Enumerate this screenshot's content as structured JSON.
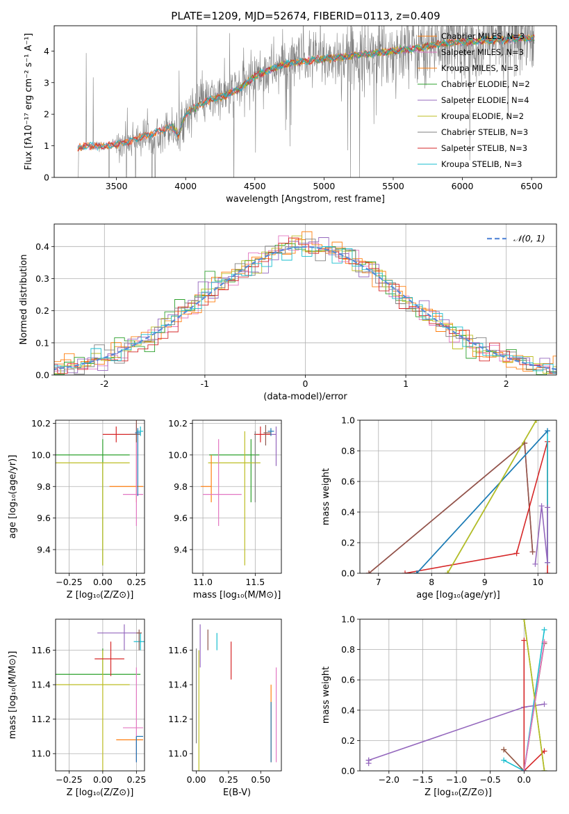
{
  "figure": {
    "title": "PLATE=1209, MJD=52674, FIBERID=0113, z=0.409"
  },
  "colors": {
    "series": [
      "#ff7f0e",
      "#2ca02c",
      "#9467bd",
      "#bcbd22",
      "#7f7f7f",
      "#d62728",
      "#17becf",
      "#e377c2",
      "#8c564b",
      "#1f77b4"
    ],
    "chabrier_miles": "#ff7f0e",
    "salpeter_miles": "#e377c2",
    "kroupa_miles": "#ff7f0e",
    "chabrier_elodie": "#2ca02c",
    "salpeter_elodie": "#9467bd",
    "kroupa_elodie": "#bcbd22",
    "chabrier_stelib": "#7f7f7f",
    "salpeter_stelib": "#d62728",
    "kroupa_stelib": "#17becf",
    "normal_curve": "#5b8bd8"
  },
  "chart_data": [
    {
      "id": "spectrum",
      "type": "line",
      "title": "PLATE=1209, MJD=52674, FIBERID=0113, z=0.409",
      "xlabel": "wavelength [Angstrom, rest frame]",
      "ylabel": "Flux [fλ10⁻¹⁷ erg cm⁻² s⁻¹ A⁻¹]",
      "xlim": [
        3050,
        6680
      ],
      "ylim": [
        0,
        4.8
      ],
      "xticks": [
        3500,
        4000,
        4500,
        5000,
        5500,
        6000,
        6500
      ],
      "yticks": [
        0,
        1,
        2,
        3,
        4
      ],
      "grid": false,
      "legend_position": "top-right",
      "legend": [
        "Chabrier MILES, N_SSP=3",
        "Salpeter MILES, N_SSP=3",
        "Kroupa MILES, N_SSP=3",
        "Chabrier ELODIE, N_SSP=2",
        "Salpeter ELODIE, N_SSP=4",
        "Kroupa ELODIE, N_SSP=2",
        "Chabrier STELIB, N_SSP=3",
        "Salpeter STELIB, N_SSP=3",
        "Kroupa STELIB, N_SSP=3"
      ],
      "model_continuum": {
        "x": [
          3210,
          3230,
          3300,
          3400,
          3500,
          3600,
          3700,
          3800,
          3900,
          3950,
          4000,
          4100,
          4200,
          4300,
          4400,
          4500,
          4600,
          4700,
          4800,
          4900,
          5000,
          5100,
          5200,
          5300,
          5400,
          5500,
          5600,
          5700,
          5800,
          5900,
          6000,
          6100,
          6200,
          6300,
          6400,
          6500
        ],
        "y": [
          0.85,
          0.95,
          1.0,
          0.98,
          1.05,
          1.15,
          1.3,
          1.45,
          1.6,
          1.35,
          2.0,
          2.3,
          2.5,
          2.6,
          2.85,
          3.2,
          3.4,
          3.55,
          3.65,
          3.7,
          3.75,
          3.8,
          3.85,
          3.9,
          3.95,
          4.0,
          4.05,
          4.1,
          4.2,
          4.25,
          4.3,
          4.3,
          4.35,
          4.35,
          4.4,
          4.4
        ]
      },
      "observed_range": [
        3220,
        6520
      ]
    },
    {
      "id": "residuals",
      "type": "histogram",
      "xlabel": "(data-model)/error",
      "ylabel": "Normed distribution",
      "xlim": [
        -2.5,
        2.5
      ],
      "ylim": [
        0,
        0.47
      ],
      "xticks": [
        -2,
        -1,
        0,
        1,
        2
      ],
      "yticks": [
        0.0,
        0.1,
        0.2,
        0.3,
        0.4
      ],
      "grid": true,
      "legend_position": "top-right",
      "legend": [
        "𝒩(0, 1)"
      ],
      "bin_width": 0.1,
      "reference": "N(0,1)"
    },
    {
      "id": "age_vs_z",
      "type": "errorbar",
      "xlabel": "Z [log₁₀(Z/Z⊙)]",
      "ylabel": "age  [log₁₀(age/yr)]",
      "xlim": [
        -0.35,
        0.31
      ],
      "ylim": [
        9.25,
        10.22
      ],
      "xticks": [
        -0.25,
        0.0,
        0.25
      ],
      "xticklabels": [
        "−0.25",
        "0.00",
        "0.25"
      ],
      "yticks": [
        9.4,
        9.6,
        9.8,
        10.0,
        10.2
      ],
      "yticklabels": [
        "9.4",
        "9.6",
        "9.8",
        "10.0",
        "10.2"
      ],
      "grid": true,
      "points": [
        {
          "x": 0.0,
          "y": 10.0,
          "xerr": [
            0.35,
            0.2
          ],
          "yerr": [
            0.7,
            0.1
          ],
          "c": 1
        },
        {
          "x": 0.0,
          "y": 9.95,
          "xerr": [
            0.35,
            0.2
          ],
          "yerr": [
            0.65,
            0.0
          ],
          "c": 3
        },
        {
          "x": 0.25,
          "y": 9.8,
          "xerr": [
            0.2,
            0.05
          ],
          "yerr": [
            0.1,
            0.35
          ],
          "c": 0
        },
        {
          "x": 0.25,
          "y": 9.75,
          "xerr": [
            0.1,
            0.05
          ],
          "yerr": [
            0.2,
            0.45
          ],
          "c": 7
        },
        {
          "x": 0.1,
          "y": 10.13,
          "xerr": [
            0.1,
            0.15
          ],
          "yerr": [
            0.05,
            0.05
          ],
          "c": 5
        },
        {
          "x": 0.25,
          "y": 10.13,
          "xerr": [
            0.05,
            0.03
          ],
          "yerr": [
            0.05,
            0.15
          ],
          "c": 8
        },
        {
          "x": 0.28,
          "y": 10.15,
          "xerr": [
            0.03,
            0.02
          ],
          "yerr": [
            0.03,
            0.03
          ],
          "c": 6
        },
        {
          "x": 0.26,
          "y": 10.14,
          "xerr": [
            0.02,
            0.02
          ],
          "yerr": [
            0.4,
            0.03
          ],
          "c": 9
        }
      ]
    },
    {
      "id": "age_vs_mass",
      "type": "errorbar",
      "xlabel": "mass [log₁₀(M/M⊙)]",
      "ylabel": "",
      "xlim": [
        10.9,
        11.75
      ],
      "ylim": [
        9.25,
        10.22
      ],
      "xticks": [
        11.0,
        11.5
      ],
      "xticklabels": [
        "11.0",
        "11.5"
      ],
      "yticks": [
        9.4,
        9.6,
        9.8,
        10.0,
        10.2
      ],
      "yticklabels": [
        "9.4",
        "9.6",
        "9.8",
        "10.0",
        "10.2"
      ],
      "grid": true,
      "points": [
        {
          "x": 11.46,
          "y": 10.0,
          "xerr": [
            0.4,
            0.08
          ],
          "yerr": [
            0.3,
            0.1
          ],
          "c": 1
        },
        {
          "x": 11.4,
          "y": 9.95,
          "xerr": [
            0.35,
            0.15
          ],
          "yerr": [
            0.65,
            0.2
          ],
          "c": 3
        },
        {
          "x": 11.08,
          "y": 9.8,
          "xerr": [
            0.1,
            0.0
          ],
          "yerr": [
            0.1,
            0.2
          ],
          "c": 0
        },
        {
          "x": 11.15,
          "y": 9.75,
          "xerr": [
            0.15,
            0.22
          ],
          "yerr": [
            0.2,
            0.35
          ],
          "c": 7
        },
        {
          "x": 11.55,
          "y": 10.13,
          "xerr": [
            0.06,
            0.1
          ],
          "yerr": [
            0.05,
            0.05
          ],
          "c": 5
        },
        {
          "x": 11.7,
          "y": 10.13,
          "xerr": [
            0.05,
            0.0
          ],
          "yerr": [
            0.2,
            0.05
          ],
          "c": 2
        },
        {
          "x": 11.65,
          "y": 10.15,
          "xerr": [
            0.03,
            0.03
          ],
          "yerr": [
            0.03,
            0.02
          ],
          "c": 9
        },
        {
          "x": 11.6,
          "y": 10.14,
          "xerr": [
            0.02,
            0.05
          ],
          "yerr": [
            0.08,
            0.05
          ],
          "c": 8
        },
        {
          "x": 11.5,
          "y": 9.8,
          "xerr": [
            0.0,
            0.0
          ],
          "yerr": [
            0.1,
            0.35
          ],
          "c": 4
        }
      ]
    },
    {
      "id": "mass_weight_vs_age",
      "type": "line",
      "xlabel": "age  [log₁₀(age/yr)]",
      "ylabel": "mass weight",
      "xlim": [
        6.65,
        10.35
      ],
      "ylim": [
        0,
        1
      ],
      "xticks": [
        7,
        8,
        9,
        10
      ],
      "yticks": [
        0.0,
        0.2,
        0.4,
        0.6,
        0.8,
        1.0
      ],
      "grid": true,
      "series": [
        {
          "c": 0,
          "x": [
            6.82,
            9.75,
            9.9
          ],
          "y": [
            0.0,
            0.85,
            0.14
          ]
        },
        {
          "c": 7,
          "x": [
            6.82,
            9.75,
            9.9
          ],
          "y": [
            0.0,
            0.85,
            0.14
          ]
        },
        {
          "c": 8,
          "x": [
            6.82,
            9.75,
            9.9
          ],
          "y": [
            0.0,
            0.85,
            0.14
          ]
        },
        {
          "c": 5,
          "x": [
            7.5,
            9.6,
            10.18,
            10.18
          ],
          "y": [
            0.0,
            0.13,
            0.86,
            0.0
          ]
        },
        {
          "c": 6,
          "x": [
            7.72,
            10.18,
            10.18
          ],
          "y": [
            0.0,
            0.93,
            0.07
          ]
        },
        {
          "c": 9,
          "x": [
            7.72,
            10.18
          ],
          "y": [
            0.0,
            0.93
          ]
        },
        {
          "c": 1,
          "x": [
            8.3,
            9.97
          ],
          "y": [
            0.0,
            1.0
          ]
        },
        {
          "c": 3,
          "x": [
            8.3,
            9.97
          ],
          "y": [
            0.0,
            1.0
          ]
        },
        {
          "c": 2,
          "x": [
            9.95,
            10.07,
            10.18,
            10.18
          ],
          "y": [
            0.06,
            0.44,
            0.07,
            0.43
          ]
        }
      ]
    },
    {
      "id": "mass_vs_z",
      "type": "errorbar",
      "xlabel": "Z [log₁₀(Z/Z⊙)]",
      "ylabel": "mass [log₁₀(M/M⊙)]",
      "xlim": [
        -0.35,
        0.31
      ],
      "ylim": [
        10.9,
        11.78
      ],
      "xticks": [
        -0.25,
        0.0,
        0.25
      ],
      "xticklabels": [
        "−0.25",
        "0.00",
        "0.25"
      ],
      "yticks": [
        11.0,
        11.2,
        11.4,
        11.6
      ],
      "yticklabels": [
        "11.0",
        "11.2",
        "11.4",
        "11.6"
      ],
      "grid": true,
      "points": [
        {
          "x": 0.0,
          "y": 11.46,
          "xerr": [
            0.35,
            0.28
          ],
          "yerr": [
            0.0,
            0.15
          ],
          "c": 1
        },
        {
          "x": 0.0,
          "y": 11.4,
          "xerr": [
            0.35,
            0.2
          ],
          "yerr": [
            0.5,
            0.2
          ],
          "c": 3
        },
        {
          "x": 0.25,
          "y": 11.08,
          "xerr": [
            0.15,
            0.05
          ],
          "yerr": [
            0.12,
            0.02
          ],
          "c": 0
        },
        {
          "x": 0.25,
          "y": 11.15,
          "xerr": [
            0.1,
            0.05
          ],
          "yerr": [
            0.2,
            0.35
          ],
          "c": 7
        },
        {
          "x": 0.25,
          "y": 11.1,
          "xerr": [
            0.0,
            0.05
          ],
          "yerr": [
            0.15,
            0.0
          ],
          "c": 9
        },
        {
          "x": 0.06,
          "y": 11.55,
          "xerr": [
            0.12,
            0.1
          ],
          "yerr": [
            0.1,
            0.1
          ],
          "c": 5
        },
        {
          "x": 0.16,
          "y": 11.7,
          "xerr": [
            0.2,
            0.11
          ],
          "yerr": [
            0.1,
            0.05
          ],
          "c": 2
        },
        {
          "x": 0.28,
          "y": 11.65,
          "xerr": [
            0.05,
            0.03
          ],
          "yerr": [
            0.05,
            0.05
          ],
          "c": 6
        },
        {
          "x": 0.27,
          "y": 11.7,
          "xerr": [
            0.02,
            0.02
          ],
          "yerr": [
            0.1,
            0.02
          ],
          "c": 8
        }
      ]
    },
    {
      "id": "mass_vs_ebv",
      "type": "errorbar",
      "xlabel": "E(B-V)",
      "ylabel": "",
      "xlim": [
        -0.03,
        0.66
      ],
      "ylim": [
        10.9,
        11.78
      ],
      "xticks": [
        0.0,
        0.25,
        0.5
      ],
      "xticklabels": [
        "0.00",
        "0.25",
        "0.50"
      ],
      "yticks": [
        11.0,
        11.2,
        11.4,
        11.6
      ],
      "yticklabels": [
        "11.0",
        "11.2",
        "11.4",
        "11.6"
      ],
      "grid": false,
      "points": [
        {
          "x": 0.0,
          "y": 11.46,
          "yerr": [
            0.4,
            0.15
          ],
          "c": 4
        },
        {
          "x": 0.02,
          "y": 11.4,
          "yerr": [
            0.5,
            0.2
          ],
          "c": 3
        },
        {
          "x": 0.03,
          "y": 11.6,
          "yerr": [
            0.1,
            0.15
          ],
          "c": 2
        },
        {
          "x": 0.09,
          "y": 11.65,
          "yerr": [
            0.05,
            0.07
          ],
          "c": 8
        },
        {
          "x": 0.16,
          "y": 11.65,
          "yerr": [
            0.05,
            0.05
          ],
          "c": 6
        },
        {
          "x": 0.27,
          "y": 11.55,
          "yerr": [
            0.12,
            0.1
          ],
          "c": 5
        },
        {
          "x": 0.58,
          "y": 11.15,
          "yerr": [
            0.2,
            0.25
          ],
          "c": 0
        },
        {
          "x": 0.58,
          "y": 11.1,
          "yerr": [
            0.15,
            0.2
          ],
          "c": 9
        },
        {
          "x": 0.62,
          "y": 11.25,
          "yerr": [
            0.3,
            0.25
          ],
          "c": 7
        }
      ]
    },
    {
      "id": "mass_weight_vs_z",
      "type": "line",
      "xlabel": "Z [log₁₀(Z/Z⊙)]",
      "ylabel": "mass weight",
      "xlim": [
        -2.43,
        0.48
      ],
      "ylim": [
        0,
        1
      ],
      "xticks": [
        -2.0,
        -1.5,
        -1.0,
        -0.5,
        0.0
      ],
      "xticklabels": [
        "−2.0",
        "−1.5",
        "−1.0",
        "−0.5",
        "0.0"
      ],
      "yticks": [
        0.0,
        0.2,
        0.4,
        0.6,
        0.8,
        1.0
      ],
      "grid": true,
      "series": [
        {
          "c": 2,
          "x": [
            -2.3,
            0.0,
            0.3
          ],
          "y": [
            0.07,
            0.42,
            0.44
          ]
        },
        {
          "c": 2,
          "x": [
            -2.3,
            -2.3
          ],
          "y": [
            0.05,
            0.07
          ]
        },
        {
          "c": 5,
          "x": [
            0.0,
            0.0,
            0.3
          ],
          "y": [
            0.86,
            0.0,
            0.13
          ]
        },
        {
          "c": 0,
          "x": [
            -0.3,
            0.0,
            0.3
          ],
          "y": [
            0.14,
            0.0,
            0.85
          ]
        },
        {
          "c": 8,
          "x": [
            -0.3,
            0.0,
            0.3
          ],
          "y": [
            0.14,
            0.0,
            0.84
          ]
        },
        {
          "c": 6,
          "x": [
            -0.3,
            0.0,
            0.3
          ],
          "y": [
            0.07,
            0.0,
            0.93
          ]
        },
        {
          "c": 1,
          "x": [
            0.0,
            0.3
          ],
          "y": [
            1.0,
            0.0
          ]
        },
        {
          "c": 3,
          "x": [
            0.0,
            0.3
          ],
          "y": [
            1.0,
            0.0
          ]
        },
        {
          "c": 7,
          "x": [
            0.0,
            0.3
          ],
          "y": [
            0.0,
            0.85
          ]
        }
      ]
    }
  ]
}
